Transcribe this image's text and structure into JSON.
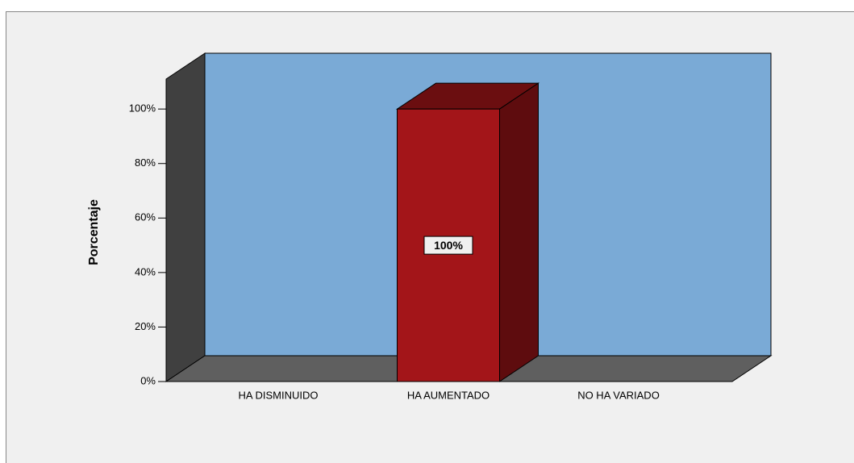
{
  "chart_data": {
    "type": "bar3d",
    "y_label": "Porcentaje",
    "categories": [
      "HA DISMINUIDO",
      "HA AUMENTADO",
      "NO HA VARIADO"
    ],
    "values": [
      0,
      100,
      0
    ],
    "value_labels": [
      null,
      "100%",
      null
    ],
    "color": "#a31519",
    "wall_color": "#7aaad6",
    "ylim": [
      0,
      111
    ],
    "yticks": [
      {
        "value": 0,
        "label": "0%"
      },
      {
        "value": 20,
        "label": "20%"
      },
      {
        "value": 40,
        "label": "40%"
      },
      {
        "value": 60,
        "label": "60%"
      },
      {
        "value": 80,
        "label": "80%"
      },
      {
        "value": 100,
        "label": "100%"
      }
    ]
  }
}
